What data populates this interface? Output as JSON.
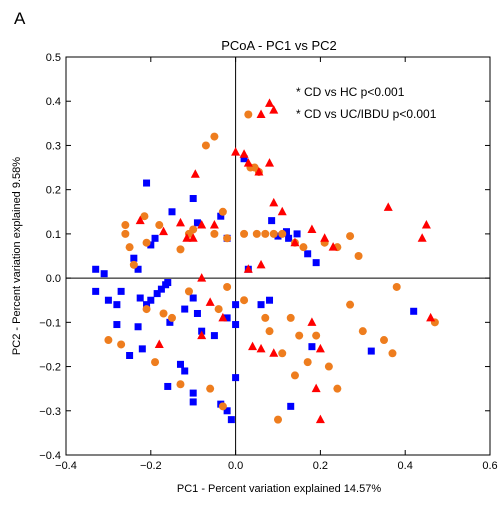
{
  "panel_label": "A",
  "chart_data": {
    "type": "scatter",
    "title": "PCoA - PC1 vs PC2",
    "xlabel": "PC1 - Percent variation explained 14.57%",
    "ylabel": "PC2 - Percent variation explained 9.58%",
    "xlim": [
      -0.4,
      0.6
    ],
    "ylim": [
      -0.4,
      0.5
    ],
    "x_ticks": [
      "−0.4",
      "−0.2",
      "0.0",
      "0.2",
      "0.4",
      "0.6"
    ],
    "y_ticks": [
      "−0.4",
      "−0.3",
      "−0.2",
      "−0.1",
      "0.0",
      "0.1",
      "0.2",
      "0.3",
      "0.4",
      "0.5"
    ],
    "grid": false,
    "reference_lines": {
      "x": 0,
      "y": 0
    },
    "annotations": [
      "* CD vs HC p<0.001",
      "* CD vs UC/IBDU p<0.001"
    ],
    "series": [
      {
        "marker": "square",
        "color": "#0000ff",
        "points": [
          [
            -0.21,
            0.215
          ],
          [
            -0.2,
            0.075
          ],
          [
            -0.19,
            0.09
          ],
          [
            -0.16,
            -0.01
          ],
          [
            -0.15,
            0.15
          ],
          [
            -0.2,
            -0.05
          ],
          [
            -0.21,
            -0.06
          ],
          [
            -0.185,
            -0.035
          ],
          [
            -0.175,
            -0.025
          ],
          [
            -0.165,
            -0.015
          ],
          [
            -0.155,
            -0.1
          ],
          [
            -0.1,
            0.18
          ],
          [
            -0.1,
            -0.045
          ],
          [
            -0.09,
            0.125
          ],
          [
            -0.035,
            0.14
          ],
          [
            -0.02,
            0.09
          ],
          [
            -0.02,
            -0.09
          ],
          [
            -0.16,
            -0.245
          ],
          [
            -0.13,
            -0.195
          ],
          [
            -0.1,
            -0.26
          ],
          [
            -0.1,
            -0.28
          ],
          [
            -0.02,
            -0.3
          ],
          [
            0.0,
            -0.225
          ],
          [
            0.0,
            -0.105
          ],
          [
            -0.09,
            -0.08
          ],
          [
            -0.24,
            0.045
          ],
          [
            -0.23,
            0.02
          ],
          [
            -0.225,
            -0.045
          ],
          [
            -0.12,
            -0.21
          ],
          [
            -0.035,
            -0.285
          ],
          [
            -0.01,
            -0.32
          ],
          [
            0.03,
            0.02
          ],
          [
            0.02,
            0.27
          ],
          [
            0.085,
            0.13
          ],
          [
            0.1,
            0.095
          ],
          [
            0.125,
            0.09
          ],
          [
            0.12,
            0.105
          ],
          [
            0.145,
            0.1
          ],
          [
            0.17,
            0.055
          ],
          [
            0.19,
            0.035
          ],
          [
            -0.33,
            0.02
          ],
          [
            -0.31,
            0.01
          ],
          [
            -0.3,
            -0.05
          ],
          [
            -0.28,
            -0.06
          ],
          [
            -0.27,
            -0.03
          ],
          [
            -0.33,
            -0.03
          ],
          [
            -0.28,
            -0.105
          ],
          [
            -0.23,
            -0.11
          ],
          [
            -0.25,
            -0.175
          ],
          [
            -0.22,
            -0.16
          ],
          [
            -0.12,
            -0.07
          ],
          [
            -0.08,
            -0.12
          ],
          [
            -0.05,
            -0.13
          ],
          [
            0.0,
            -0.06
          ],
          [
            0.06,
            -0.06
          ],
          [
            0.08,
            -0.05
          ],
          [
            0.18,
            -0.155
          ],
          [
            0.13,
            -0.29
          ],
          [
            0.32,
            -0.165
          ],
          [
            0.42,
            -0.075
          ]
        ]
      },
      {
        "marker": "circle",
        "color": "#ee7d1e",
        "points": [
          [
            -0.26,
            0.12
          ],
          [
            -0.26,
            0.1
          ],
          [
            -0.215,
            0.14
          ],
          [
            -0.18,
            0.12
          ],
          [
            -0.25,
            0.07
          ],
          [
            -0.24,
            0.03
          ],
          [
            -0.21,
            0.08
          ],
          [
            -0.13,
            0.065
          ],
          [
            -0.11,
            0.1
          ],
          [
            -0.1,
            0.11
          ],
          [
            -0.03,
            0.15
          ],
          [
            -0.05,
            0.1
          ],
          [
            -0.02,
            0.09
          ],
          [
            0.02,
            0.1
          ],
          [
            0.05,
            0.1
          ],
          [
            0.07,
            0.1
          ],
          [
            0.09,
            0.1
          ],
          [
            0.11,
            0.1
          ],
          [
            0.14,
            0.08
          ],
          [
            0.16,
            0.07
          ],
          [
            0.21,
            0.08
          ],
          [
            0.24,
            0.07
          ],
          [
            0.27,
            0.095
          ],
          [
            0.29,
            0.05
          ],
          [
            -0.05,
            0.32
          ],
          [
            -0.07,
            0.3
          ],
          [
            0.03,
            0.37
          ],
          [
            0.035,
            0.25
          ],
          [
            0.045,
            0.25
          ],
          [
            0.055,
            0.24
          ],
          [
            -0.21,
            -0.07
          ],
          [
            -0.17,
            -0.08
          ],
          [
            -0.15,
            -0.09
          ],
          [
            -0.11,
            -0.03
          ],
          [
            -0.04,
            -0.07
          ],
          [
            -0.02,
            -0.02
          ],
          [
            0.07,
            -0.09
          ],
          [
            0.11,
            -0.17
          ],
          [
            0.14,
            -0.22
          ],
          [
            0.15,
            -0.13
          ],
          [
            0.17,
            -0.19
          ],
          [
            0.19,
            -0.13
          ],
          [
            0.22,
            -0.2
          ],
          [
            0.24,
            -0.25
          ],
          [
            0.27,
            -0.06
          ],
          [
            0.3,
            -0.12
          ],
          [
            0.35,
            -0.14
          ],
          [
            0.37,
            -0.17
          ],
          [
            0.38,
            -0.02
          ],
          [
            0.47,
            -0.1
          ],
          [
            -0.27,
            -0.15
          ],
          [
            -0.19,
            -0.19
          ],
          [
            -0.13,
            -0.24
          ],
          [
            -0.06,
            -0.25
          ],
          [
            -0.03,
            -0.29
          ],
          [
            0.02,
            -0.05
          ],
          [
            0.08,
            -0.12
          ],
          [
            0.13,
            -0.09
          ],
          [
            -0.3,
            -0.14
          ],
          [
            0.1,
            -0.32
          ]
        ]
      },
      {
        "marker": "triangle",
        "color": "#ff0000",
        "points": [
          [
            -0.225,
            0.13
          ],
          [
            -0.17,
            0.105
          ],
          [
            -0.13,
            0.125
          ],
          [
            -0.115,
            0.09
          ],
          [
            -0.1,
            0.09
          ],
          [
            -0.08,
            0.12
          ],
          [
            -0.05,
            0.12
          ],
          [
            -0.095,
            0.235
          ],
          [
            0.0,
            0.285
          ],
          [
            0.02,
            0.28
          ],
          [
            0.03,
            0.26
          ],
          [
            0.06,
            0.37
          ],
          [
            0.08,
            0.395
          ],
          [
            0.09,
            0.38
          ],
          [
            0.08,
            0.26
          ],
          [
            0.055,
            0.24
          ],
          [
            0.09,
            0.17
          ],
          [
            0.11,
            0.15
          ],
          [
            0.14,
            0.08
          ],
          [
            0.18,
            0.11
          ],
          [
            0.21,
            0.09
          ],
          [
            0.23,
            0.07
          ],
          [
            0.03,
            0.02
          ],
          [
            0.06,
            0.03
          ],
          [
            -0.08,
            0.0
          ],
          [
            -0.06,
            -0.055
          ],
          [
            -0.03,
            -0.09
          ],
          [
            -0.08,
            -0.13
          ],
          [
            0.04,
            -0.155
          ],
          [
            0.06,
            -0.16
          ],
          [
            0.09,
            -0.17
          ],
          [
            0.18,
            -0.1
          ],
          [
            0.2,
            -0.16
          ],
          [
            0.19,
            -0.25
          ],
          [
            0.2,
            -0.32
          ],
          [
            -0.18,
            -0.15
          ],
          [
            0.36,
            0.16
          ],
          [
            0.44,
            0.09
          ],
          [
            0.45,
            0.12
          ],
          [
            0.46,
            -0.09
          ]
        ]
      }
    ]
  }
}
